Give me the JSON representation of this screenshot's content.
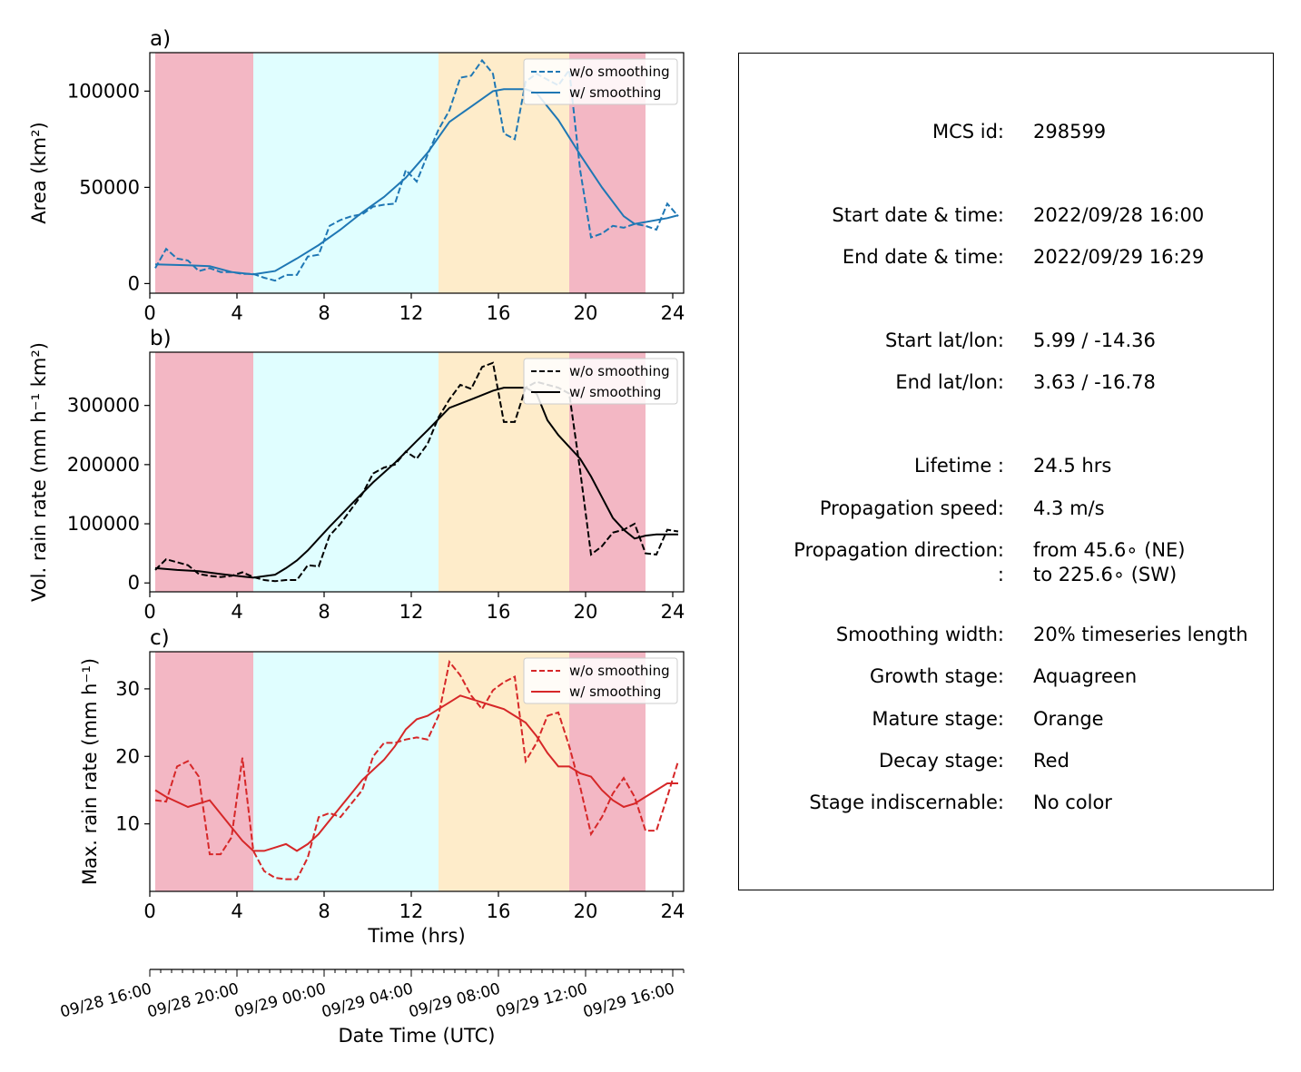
{
  "stage_colors": {
    "decay": "#f3b7c4",
    "growth": "#e0feff",
    "mature": "#feecca"
  },
  "stage_bands": [
    {
      "stage": "decay",
      "x0": 0.25,
      "x1": 4.75
    },
    {
      "stage": "growth",
      "x0": 4.75,
      "x1": 13.25
    },
    {
      "stage": "mature",
      "x0": 13.25,
      "x1": 19.25
    },
    {
      "stage": "decay",
      "x0": 19.25,
      "x1": 22.75
    }
  ],
  "chart_data": [
    {
      "type": "line",
      "panel_label": "a)",
      "ylabel": "Area  (km²)",
      "xlim": [
        0,
        24.5
      ],
      "ylim": [
        -5000,
        120000
      ],
      "yticks": [
        0,
        50000,
        100000
      ],
      "ytick_labels": [
        "0",
        "50000",
        "100000"
      ],
      "xticks": [
        0,
        4,
        8,
        12,
        16,
        20,
        24
      ],
      "xtick_labels": [
        "0",
        "4",
        "8",
        "12",
        "16",
        "20",
        "24"
      ],
      "color": "#1f77b4",
      "legend": "top-right",
      "series": [
        {
          "name": "w/o smoothing",
          "style": "dashed",
          "x": [
            0.25,
            0.75,
            1.25,
            1.75,
            2.25,
            2.75,
            3.25,
            3.75,
            4.25,
            4.75,
            5.25,
            5.75,
            6.25,
            6.75,
            7.25,
            7.75,
            8.25,
            8.75,
            9.25,
            9.75,
            10.25,
            10.75,
            11.25,
            11.75,
            12.25,
            12.75,
            13.25,
            13.75,
            14.25,
            14.75,
            15.25,
            15.75,
            16.25,
            16.75,
            17.25,
            17.75,
            18.25,
            18.75,
            19.25,
            19.75,
            20.25,
            20.75,
            21.25,
            21.75,
            22.25,
            22.75,
            23.25,
            23.75,
            24.25
          ],
          "y": [
            8000,
            18000,
            13000,
            12000,
            6500,
            8000,
            6000,
            6000,
            5000,
            5000,
            3000,
            1500,
            4500,
            4500,
            14000,
            15000,
            30000,
            33000,
            35000,
            36000,
            40000,
            41000,
            41500,
            59000,
            53000,
            67000,
            80000,
            90000,
            107000,
            108000,
            116000,
            109000,
            78000,
            75000,
            105000,
            109000,
            106000,
            103000,
            111000,
            59000,
            24000,
            26000,
            30000,
            29000,
            31000,
            30000,
            28000,
            41500,
            35000
          ]
        },
        {
          "name": "w/ smoothing",
          "style": "solid",
          "x": [
            0.25,
            1.75,
            2.75,
            3.75,
            4.75,
            5.75,
            6.75,
            7.75,
            8.75,
            9.75,
            10.75,
            11.75,
            12.75,
            13.75,
            14.75,
            15.75,
            16.25,
            17.25,
            17.75,
            18.75,
            19.75,
            20.75,
            21.75,
            22.25,
            22.75,
            23.75,
            24.25
          ],
          "y": [
            10000,
            9500,
            9000,
            6000,
            4800,
            6500,
            13000,
            20000,
            28000,
            37000,
            45000,
            55000,
            68000,
            84000,
            92000,
            100000,
            101000,
            101000,
            99000,
            85000,
            67000,
            50000,
            35000,
            31000,
            32000,
            34000,
            35500
          ]
        }
      ]
    },
    {
      "type": "line",
      "panel_label": "b)",
      "ylabel": "Vol. rain rate (mm h⁻¹ km²)",
      "xlim": [
        0,
        24.5
      ],
      "ylim": [
        -15000,
        390000
      ],
      "yticks": [
        0,
        100000,
        200000,
        300000
      ],
      "ytick_labels": [
        "0",
        "100000",
        "200000",
        "300000"
      ],
      "xticks": [
        0,
        4,
        8,
        12,
        16,
        20,
        24
      ],
      "xtick_labels": [
        "0",
        "4",
        "8",
        "12",
        "16",
        "20",
        "24"
      ],
      "color": "#000000",
      "legend": "top-right",
      "series": [
        {
          "name": "w/o smoothing",
          "style": "dashed",
          "x": [
            0.25,
            0.75,
            1.25,
            1.75,
            2.25,
            2.75,
            3.25,
            3.75,
            4.25,
            4.75,
            5.25,
            5.75,
            6.25,
            6.75,
            7.25,
            7.75,
            8.25,
            8.75,
            9.25,
            9.75,
            10.25,
            10.75,
            11.25,
            11.75,
            12.25,
            12.75,
            13.25,
            13.75,
            14.25,
            14.75,
            15.25,
            15.75,
            16.25,
            16.75,
            17.25,
            17.75,
            18.25,
            18.75,
            19.25,
            19.75,
            20.25,
            20.75,
            21.25,
            21.75,
            22.25,
            22.75,
            23.25,
            23.75,
            24.25
          ],
          "y": [
            22000,
            40000,
            35000,
            30000,
            15000,
            12000,
            10000,
            12000,
            18000,
            10000,
            5000,
            3000,
            5000,
            5000,
            30000,
            28000,
            80000,
            100000,
            125000,
            150000,
            185000,
            195000,
            200000,
            222000,
            210000,
            235000,
            280000,
            310000,
            335000,
            328000,
            365000,
            372000,
            272000,
            272000,
            330000,
            340000,
            335000,
            330000,
            320000,
            190000,
            48000,
            62000,
            85000,
            90000,
            100000,
            50000,
            48000,
            90000,
            87000
          ]
        },
        {
          "name": "w/ smoothing",
          "style": "solid",
          "x": [
            0.25,
            1.25,
            2.25,
            3.25,
            4.25,
            4.75,
            5.75,
            6.25,
            6.75,
            7.25,
            7.75,
            8.25,
            9.25,
            10.25,
            11.25,
            12.25,
            12.75,
            13.75,
            14.75,
            15.75,
            16.25,
            17.25,
            17.75,
            18.25,
            18.75,
            19.75,
            20.25,
            20.75,
            21.25,
            21.75,
            22.25,
            22.75,
            23.25,
            23.75,
            24.25
          ],
          "y": [
            25000,
            22000,
            20000,
            15000,
            11000,
            9000,
            14000,
            25000,
            38000,
            55000,
            75000,
            95000,
            133000,
            170000,
            203000,
            240000,
            258000,
            296000,
            310000,
            325000,
            330000,
            330000,
            320000,
            275000,
            250000,
            210000,
            180000,
            145000,
            110000,
            90000,
            75000,
            80000,
            82000,
            82000,
            82000
          ]
        }
      ]
    },
    {
      "type": "line",
      "panel_label": "c)",
      "ylabel": "Max. rain rate  (mm h⁻¹)",
      "xlim": [
        0,
        24.5
      ],
      "ylim": [
        0,
        35.5
      ],
      "yticks": [
        10,
        20,
        30
      ],
      "ytick_labels": [
        "10",
        "20",
        "30"
      ],
      "xticks": [
        0,
        4,
        8,
        12,
        16,
        20,
        24
      ],
      "xtick_labels": [
        "0",
        "4",
        "8",
        "12",
        "16",
        "20",
        "24"
      ],
      "xlabel": "Time (hrs)",
      "color": "#d62728",
      "legend": "top-right",
      "series": [
        {
          "name": "w/o smoothing",
          "style": "dashed",
          "x": [
            0.25,
            0.75,
            1.25,
            1.75,
            2.25,
            2.75,
            3.25,
            3.75,
            4.25,
            4.75,
            5.25,
            5.75,
            6.25,
            6.75,
            7.25,
            7.75,
            8.25,
            8.75,
            9.25,
            9.75,
            10.25,
            10.75,
            11.25,
            11.75,
            12.25,
            12.75,
            13.25,
            13.75,
            14.25,
            14.75,
            15.25,
            15.75,
            16.25,
            16.75,
            17.25,
            17.75,
            18.25,
            18.75,
            19.25,
            19.75,
            20.25,
            20.75,
            21.25,
            21.75,
            22.25,
            22.75,
            23.25,
            23.75,
            24.25
          ],
          "y": [
            13.5,
            13.3,
            18.5,
            19.3,
            17,
            5.5,
            5.5,
            8,
            19.8,
            6,
            3,
            2,
            1.8,
            1.8,
            5,
            11,
            11.6,
            11,
            13,
            15,
            20,
            22,
            22,
            22.5,
            22.8,
            22.5,
            26,
            34,
            32,
            29,
            27,
            29.8,
            31,
            31.8,
            19.3,
            22,
            26,
            26.5,
            21.5,
            15.5,
            8.5,
            11,
            14.5,
            16.8,
            14,
            9,
            9,
            14,
            19.3
          ]
        },
        {
          "name": "w/ smoothing",
          "style": "solid",
          "x": [
            0.25,
            0.75,
            1.75,
            2.25,
            2.75,
            3.25,
            3.75,
            4.25,
            4.75,
            5.25,
            5.75,
            6.25,
            6.75,
            7.25,
            7.75,
            8.25,
            8.75,
            9.25,
            9.75,
            10.25,
            10.75,
            11.25,
            11.75,
            12.25,
            12.75,
            13.25,
            13.75,
            14.25,
            14.75,
            15.25,
            15.75,
            16.25,
            16.75,
            17.25,
            17.75,
            18.25,
            18.75,
            19.25,
            19.75,
            20.25,
            20.75,
            21.25,
            21.75,
            22.25,
            22.75,
            23.25,
            23.75,
            24.25
          ],
          "y": [
            15,
            14,
            12.5,
            13,
            13.5,
            11.5,
            9.5,
            7.5,
            6,
            6,
            6.5,
            7,
            6,
            7,
            8.5,
            10.5,
            12.5,
            14.5,
            16.5,
            18,
            19.5,
            21.5,
            24,
            25.5,
            26,
            27,
            28,
            29,
            28.5,
            28,
            27.5,
            27,
            26,
            25,
            23,
            20.5,
            18.5,
            18.5,
            17.5,
            17,
            15,
            13.5,
            12.5,
            13,
            14,
            15,
            16,
            16
          ]
        }
      ]
    }
  ],
  "secondary_axis": {
    "xlabel": "Date Time (UTC)",
    "major_ticks": [
      0,
      4,
      8,
      12,
      16,
      20,
      24
    ],
    "tick_labels": [
      "09/28 16:00",
      "09/28 20:00",
      "09/29 00:00",
      "09/29 04:00",
      "09/29 08:00",
      "09/29 12:00",
      "09/29 16:00"
    ]
  },
  "info": {
    "mcs_id_label": "MCS id:",
    "mcs_id": "298599",
    "start_time_label": "Start date & time:",
    "start_time": "2022/09/28 16:00",
    "end_time_label": "End date & time:",
    "end_time": "2022/09/29 16:29",
    "start_latlon_label": "Start lat/lon:",
    "start_latlon": "5.99 / -14.36",
    "end_latlon_label": "End lat/lon:",
    "end_latlon": "3.63 / -16.78",
    "lifetime_label": "Lifetime :",
    "lifetime": "24.5 hrs",
    "speed_label": "Propagation speed:",
    "speed": "4.3 m/s",
    "direction_label": "Propagation direction:",
    "direction_from": "from  45.6∘ (NE)",
    "direction_label2": ":",
    "direction_to": "to   225.6∘ (SW)",
    "smoothing_label": "Smoothing width:",
    "smoothing": "20% timeseries length",
    "growth_label": "Growth stage:",
    "growth": "Aquagreen",
    "mature_label": "Mature stage:",
    "mature": "Orange",
    "decay_label": "Decay stage:",
    "decay": "Red",
    "indiscernible_label": "Stage indiscernable:",
    "indiscernible": "No color"
  }
}
